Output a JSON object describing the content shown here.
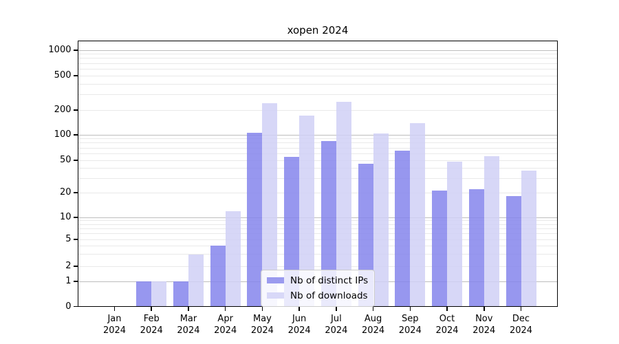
{
  "figure": {
    "background": "#ffffff"
  },
  "chart_data": {
    "type": "bar",
    "title": "xopen 2024",
    "x_tick_labels": [
      {
        "month": "Jan",
        "year": "2024"
      },
      {
        "month": "Feb",
        "year": "2024"
      },
      {
        "month": "Mar",
        "year": "2024"
      },
      {
        "month": "Apr",
        "year": "2024"
      },
      {
        "month": "May",
        "year": "2024"
      },
      {
        "month": "Jun",
        "year": "2024"
      },
      {
        "month": "Jul",
        "year": "2024"
      },
      {
        "month": "Aug",
        "year": "2024"
      },
      {
        "month": "Sep",
        "year": "2024"
      },
      {
        "month": "Oct",
        "year": "2024"
      },
      {
        "month": "Nov",
        "year": "2024"
      },
      {
        "month": "Dec",
        "year": "2024"
      }
    ],
    "series": [
      {
        "name": "Nb of distinct IPs",
        "color": "#9b9bef",
        "values": [
          0,
          1,
          1,
          4,
          106,
          55,
          84,
          45,
          65,
          21,
          22,
          18
        ]
      },
      {
        "name": "Nb of downloads",
        "color": "#d8d8f8",
        "values": [
          0,
          1,
          3,
          12,
          240,
          172,
          250,
          104,
          139,
          48,
          56,
          37
        ]
      }
    ],
    "xlabel": "",
    "ylabel": "",
    "y_scale": "symlog",
    "y_ticks": [
      0,
      1,
      2,
      5,
      10,
      20,
      50,
      100,
      200,
      500,
      1000
    ],
    "ylim": [
      0,
      1300
    ],
    "grid": "horizontal",
    "legend_position": "lower center",
    "colors": {
      "bar_dark": "#9b9bef",
      "bar_light": "#d8d8f8",
      "major_grid": "#bdbdbd",
      "minor_grid": "#e9e9e9",
      "axis": "#000000"
    }
  }
}
